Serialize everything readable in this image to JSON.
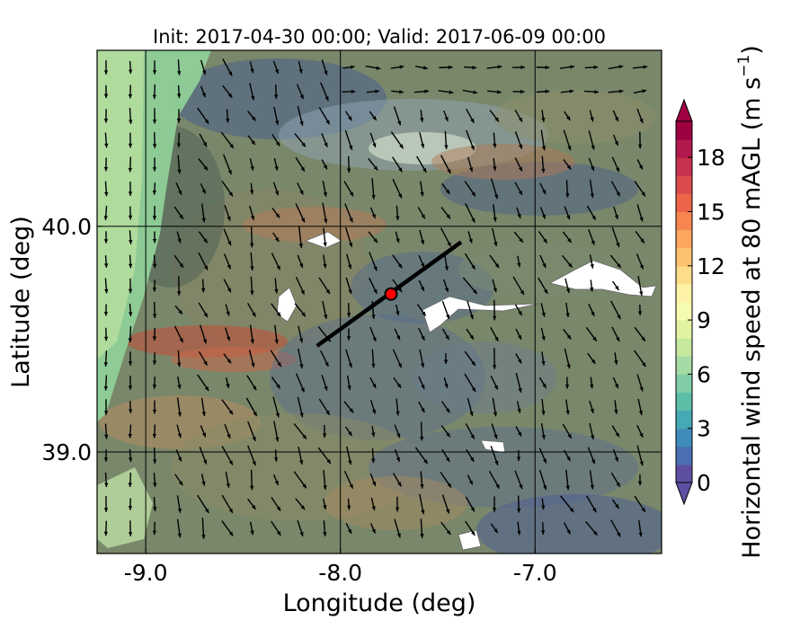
{
  "title": "Init: 2017-04-30 00:00; Valid: 2017-06-09 00:00",
  "chart_data": {
    "type": "heatmap",
    "title": "Init: 2017-04-30 00:00; Valid: 2017-06-09 00:00",
    "xlabel": "Longitude (deg)",
    "ylabel": "Latitude (deg)",
    "xlim": [
      -9.25,
      -6.35
    ],
    "ylim": [
      38.55,
      40.78
    ],
    "xticks": [
      -9.0,
      -8.0,
      -7.0
    ],
    "xtick_labels": [
      "-9.0",
      "-8.0",
      "-7.0"
    ],
    "yticks": [
      39.0,
      40.0
    ],
    "ytick_labels": [
      "39.0",
      "40.0"
    ],
    "grid": true,
    "colorbar": {
      "label": "Horizontal wind speed at 80 mAGL (m s$^{-1}$)",
      "label_text": "Horizontal wind speed at 80 mAGL (m s",
      "label_exp": "−1",
      "label_close": ")",
      "range": [
        0,
        20
      ],
      "ticks": [
        0,
        3,
        6,
        9,
        12,
        15,
        18
      ],
      "tick_labels": [
        "0",
        "3",
        "6",
        "9",
        "12",
        "15",
        "18"
      ],
      "colors": [
        "#5e4fa2",
        "#4a6fb3",
        "#3f8cba",
        "#46a9b5",
        "#5dbea8",
        "#80cca4",
        "#a4daa4",
        "#c6e89f",
        "#e1f3a0",
        "#f5fbb0",
        "#fef3a6",
        "#fedd8a",
        "#fdc270",
        "#fca55f",
        "#f78550",
        "#ec6548",
        "#dc4b4c",
        "#c8324f",
        "#b2194d",
        "#9e0142"
      ],
      "extend": "both"
    },
    "site_marker": {
      "lon": -7.74,
      "lat": 39.7,
      "color": "#ff0000"
    },
    "cross_section_line": {
      "lon": [
        -8.12,
        -7.38
      ],
      "lat": [
        39.47,
        39.93
      ]
    },
    "wind_field_direction": "predominantly from the north / north-northwest"
  }
}
